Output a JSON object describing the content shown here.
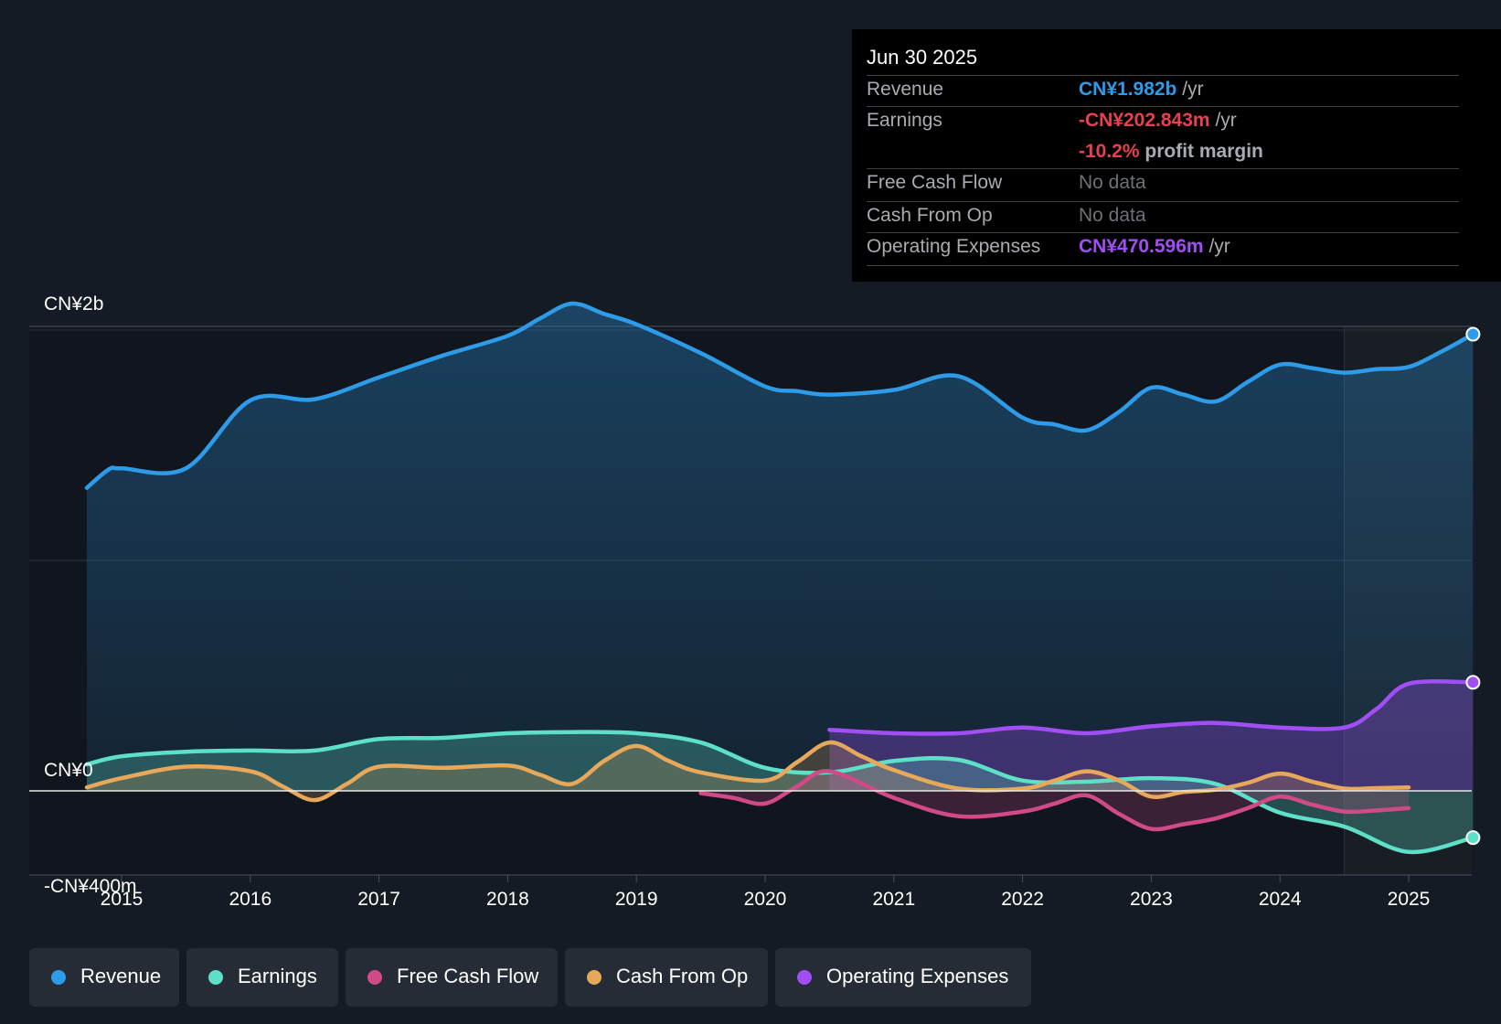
{
  "chart_data": {
    "type": "area",
    "title": "",
    "y_axis_labels": [
      "CN¥2b",
      "CN¥0",
      "-CN¥400m"
    ],
    "ylim": [
      -400,
      2000
    ],
    "ylim_unit": "CN¥m",
    "x_ticks": [
      "2015",
      "2016",
      "2017",
      "2018",
      "2019",
      "2020",
      "2021",
      "2022",
      "2023",
      "2024",
      "2025"
    ],
    "x_tick_values": [
      2015,
      2016,
      2017,
      2018,
      2019,
      2020,
      2021,
      2022,
      2023,
      2024,
      2025
    ],
    "xlim": [
      2014.3,
      2025.5
    ],
    "forecast_start": 2024.5,
    "series": [
      {
        "name": "Revenue",
        "color": "#2e9be8",
        "fill": true,
        "end_marker": true,
        "x": [
          2014.73,
          2014.9,
          2015.0,
          2015.5,
          2016.0,
          2016.5,
          2017.0,
          2017.5,
          2018.0,
          2018.25,
          2018.5,
          2018.75,
          2019.0,
          2019.5,
          2020.0,
          2020.25,
          2020.5,
          2021.0,
          2021.5,
          2022.0,
          2022.25,
          2022.5,
          2022.75,
          2023.0,
          2023.25,
          2023.5,
          2023.75,
          2024.0,
          2024.25,
          2024.5,
          2024.75,
          2025.0,
          2025.25,
          2025.5
        ],
        "values": [
          1315,
          1395,
          1400,
          1400,
          1695,
          1700,
          1795,
          1890,
          1975,
          2050,
          2115,
          2070,
          2025,
          1900,
          1755,
          1735,
          1720,
          1740,
          1800,
          1620,
          1590,
          1565,
          1645,
          1750,
          1720,
          1690,
          1775,
          1850,
          1835,
          1815,
          1830,
          1840,
          1905,
          1982
        ]
      },
      {
        "name": "Earnings",
        "color": "#5ee0c8",
        "fill": true,
        "end_marker": true,
        "x": [
          2014.73,
          2015.0,
          2015.5,
          2016.0,
          2016.5,
          2017.0,
          2017.5,
          2018.0,
          2018.5,
          2019.0,
          2019.5,
          2020.0,
          2020.5,
          2021.0,
          2021.5,
          2022.0,
          2022.5,
          2023.0,
          2023.5,
          2024.0,
          2024.5,
          2025.0,
          2025.5
        ],
        "values": [
          115,
          150,
          170,
          175,
          175,
          225,
          230,
          250,
          255,
          250,
          210,
          100,
          80,
          130,
          135,
          45,
          40,
          55,
          30,
          -95,
          -155,
          -265,
          -203
        ]
      },
      {
        "name": "Free Cash Flow",
        "color": "#d14a88",
        "fill": true,
        "end_marker": false,
        "x": [
          2019.5,
          2019.75,
          2020.0,
          2020.25,
          2020.5,
          2021.0,
          2021.5,
          2022.0,
          2022.25,
          2022.5,
          2022.75,
          2023.0,
          2023.25,
          2023.5,
          2023.75,
          2024.0,
          2024.25,
          2024.5,
          2024.75,
          2025.0
        ],
        "values": [
          -10,
          -30,
          -55,
          20,
          85,
          -30,
          -110,
          -90,
          -55,
          -20,
          -100,
          -165,
          -145,
          -120,
          -75,
          -25,
          -60,
          -90,
          -85,
          -75
        ]
      },
      {
        "name": "Cash From Op",
        "color": "#e8a85a",
        "fill": true,
        "end_marker": false,
        "x": [
          2014.73,
          2015.0,
          2015.5,
          2016.0,
          2016.25,
          2016.5,
          2016.75,
          2017.0,
          2017.5,
          2018.0,
          2018.25,
          2018.5,
          2018.75,
          2019.0,
          2019.25,
          2019.5,
          2020.0,
          2020.25,
          2020.5,
          2020.75,
          2021.0,
          2021.5,
          2022.0,
          2022.25,
          2022.5,
          2022.75,
          2023.0,
          2023.25,
          2023.5,
          2023.75,
          2024.0,
          2024.25,
          2024.5,
          2024.75,
          2025.0
        ],
        "values": [
          15,
          55,
          105,
          85,
          20,
          -40,
          30,
          105,
          100,
          110,
          70,
          30,
          130,
          195,
          130,
          80,
          45,
          125,
          210,
          150,
          90,
          10,
          10,
          45,
          85,
          45,
          -25,
          -5,
          5,
          35,
          75,
          40,
          10,
          12,
          15
        ]
      },
      {
        "name": "Operating Expenses",
        "color": "#a24ef5",
        "fill": true,
        "end_marker": true,
        "x": [
          2020.5,
          2021.0,
          2021.5,
          2022.0,
          2022.5,
          2023.0,
          2023.5,
          2024.0,
          2024.5,
          2024.75,
          2025.0,
          2025.5
        ],
        "values": [
          265,
          250,
          250,
          275,
          250,
          280,
          295,
          275,
          275,
          355,
          465,
          471
        ]
      }
    ]
  },
  "tooltip": {
    "date": "Jun 30 2025",
    "rows": {
      "revenue": {
        "label": "Revenue",
        "value": "CN¥1.982b",
        "suffix": "/yr"
      },
      "earnings": {
        "label": "Earnings",
        "value": "-CN¥202.843m",
        "suffix": "/yr"
      },
      "margin": {
        "value": "-10.2%",
        "suffix": "profit margin"
      },
      "fcf": {
        "label": "Free Cash Flow",
        "value": "No data"
      },
      "cfo": {
        "label": "Cash From Op",
        "value": "No data"
      },
      "opex": {
        "label": "Operating Expenses",
        "value": "CN¥470.596m",
        "suffix": "/yr"
      }
    }
  },
  "legend": {
    "items": [
      {
        "label": "Revenue",
        "color": "#2e9be8"
      },
      {
        "label": "Earnings",
        "color": "#5ee0c8"
      },
      {
        "label": "Free Cash Flow",
        "color": "#d14a88"
      },
      {
        "label": "Cash From Op",
        "color": "#e8a85a"
      },
      {
        "label": "Operating Expenses",
        "color": "#a24ef5"
      }
    ]
  }
}
